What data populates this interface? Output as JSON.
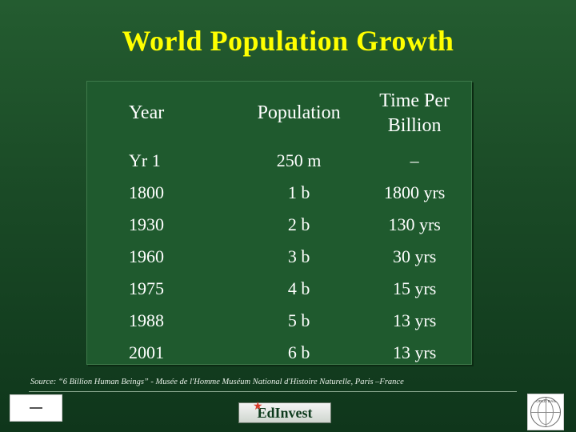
{
  "title": "World Population Growth",
  "table": {
    "headers": [
      "Year",
      "Population",
      "Time Per Billion"
    ],
    "rows": [
      [
        "Yr  1",
        "250 m",
        "–"
      ],
      [
        "1800",
        "1 b",
        "1800 yrs"
      ],
      [
        "1930",
        "2 b",
        "130 yrs"
      ],
      [
        "1960",
        "3 b",
        "30 yrs"
      ],
      [
        "1975",
        "4 b",
        "15 yrs"
      ],
      [
        "1988",
        "5 b",
        "13 yrs"
      ],
      [
        "2001",
        "6 b",
        "13 yrs"
      ]
    ]
  },
  "source": "Source: “6 Billion Human Beings” - Musée de l'Homme Muséum National d'Histoire Naturelle, Paris –France",
  "footer": {
    "edinvest_logo_text": "EdInvest",
    "world_bank_logo_text": "WORLD BANK"
  }
}
